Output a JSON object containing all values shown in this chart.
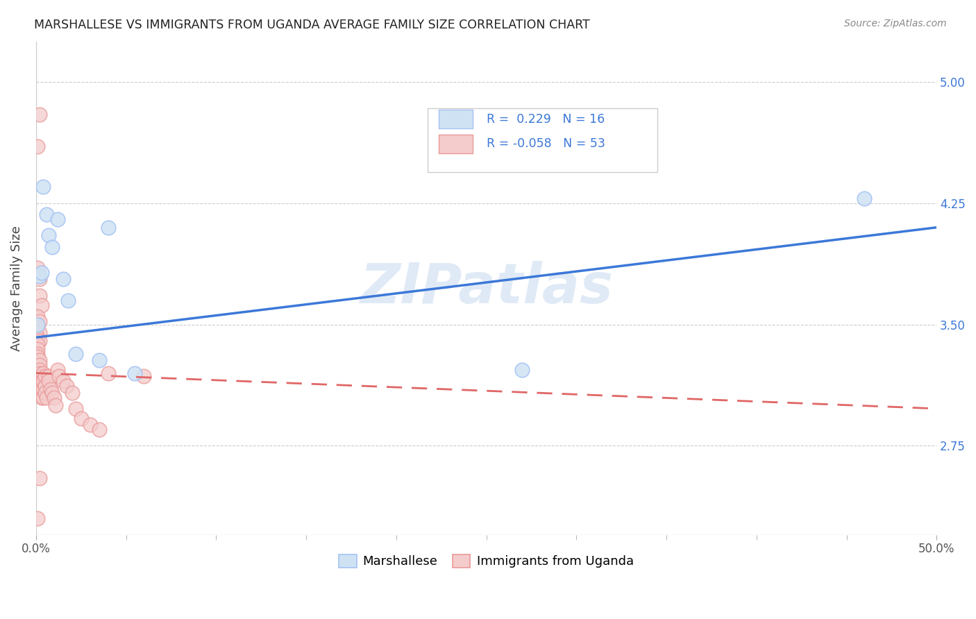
{
  "title": "MARSHALLESE VS IMMIGRANTS FROM UGANDA AVERAGE FAMILY SIZE CORRELATION CHART",
  "source": "Source: ZipAtlas.com",
  "ylabel": "Average Family Size",
  "xlim": [
    0,
    0.5
  ],
  "ylim": [
    2.2,
    5.25
  ],
  "yticks": [
    2.75,
    3.5,
    4.25,
    5.0
  ],
  "xtick_positions": [
    0.0,
    0.5
  ],
  "xtick_labels": [
    "0.0%",
    "50.0%"
  ],
  "ytick_labels_right": [
    "2.75",
    "3.50",
    "4.25",
    "5.00"
  ],
  "blue_color": "#a4c2f4",
  "pink_color": "#ea9999",
  "blue_fill_color": "#cfe2f3",
  "pink_fill_color": "#f4cccc",
  "blue_line_color": "#3c78d8",
  "pink_line_color": "#e06666",
  "watermark": "ZIPatlas",
  "blue_points": [
    [
      0.001,
      3.5
    ],
    [
      0.002,
      3.8
    ],
    [
      0.003,
      3.82
    ],
    [
      0.004,
      4.35
    ],
    [
      0.006,
      4.18
    ],
    [
      0.007,
      4.05
    ],
    [
      0.009,
      3.98
    ],
    [
      0.012,
      4.15
    ],
    [
      0.015,
      3.78
    ],
    [
      0.018,
      3.65
    ],
    [
      0.022,
      3.32
    ],
    [
      0.035,
      3.28
    ],
    [
      0.04,
      4.1
    ],
    [
      0.055,
      3.2
    ],
    [
      0.27,
      3.22
    ],
    [
      0.46,
      4.28
    ]
  ],
  "pink_points": [
    [
      0.001,
      4.6
    ],
    [
      0.002,
      4.8
    ],
    [
      0.001,
      3.85
    ],
    [
      0.002,
      3.78
    ],
    [
      0.002,
      3.68
    ],
    [
      0.003,
      3.62
    ],
    [
      0.001,
      3.55
    ],
    [
      0.002,
      3.52
    ],
    [
      0.001,
      3.48
    ],
    [
      0.002,
      3.45
    ],
    [
      0.001,
      3.42
    ],
    [
      0.002,
      3.4
    ],
    [
      0.001,
      3.38
    ],
    [
      0.001,
      3.35
    ],
    [
      0.001,
      3.32
    ],
    [
      0.001,
      3.3
    ],
    [
      0.002,
      3.28
    ],
    [
      0.002,
      3.25
    ],
    [
      0.002,
      3.22
    ],
    [
      0.002,
      3.2
    ],
    [
      0.003,
      3.18
    ],
    [
      0.003,
      3.15
    ],
    [
      0.003,
      3.12
    ],
    [
      0.003,
      3.1
    ],
    [
      0.003,
      3.08
    ],
    [
      0.003,
      3.05
    ],
    [
      0.004,
      3.2
    ],
    [
      0.004,
      3.15
    ],
    [
      0.004,
      3.1
    ],
    [
      0.004,
      3.05
    ],
    [
      0.005,
      3.18
    ],
    [
      0.005,
      3.12
    ],
    [
      0.005,
      3.08
    ],
    [
      0.006,
      3.05
    ],
    [
      0.007,
      3.18
    ],
    [
      0.007,
      3.15
    ],
    [
      0.008,
      3.1
    ],
    [
      0.009,
      3.08
    ],
    [
      0.01,
      3.05
    ],
    [
      0.011,
      3.0
    ],
    [
      0.012,
      3.22
    ],
    [
      0.013,
      3.18
    ],
    [
      0.015,
      3.15
    ],
    [
      0.017,
      3.12
    ],
    [
      0.02,
      3.08
    ],
    [
      0.022,
      2.98
    ],
    [
      0.025,
      2.92
    ],
    [
      0.03,
      2.88
    ],
    [
      0.035,
      2.85
    ],
    [
      0.04,
      3.2
    ],
    [
      0.06,
      3.18
    ],
    [
      0.002,
      2.55
    ],
    [
      0.001,
      2.3
    ]
  ],
  "blue_trendline": [
    [
      0.0,
      3.42
    ],
    [
      0.5,
      4.1
    ]
  ],
  "pink_trendline": [
    [
      0.0,
      3.2
    ],
    [
      0.5,
      2.98
    ]
  ]
}
